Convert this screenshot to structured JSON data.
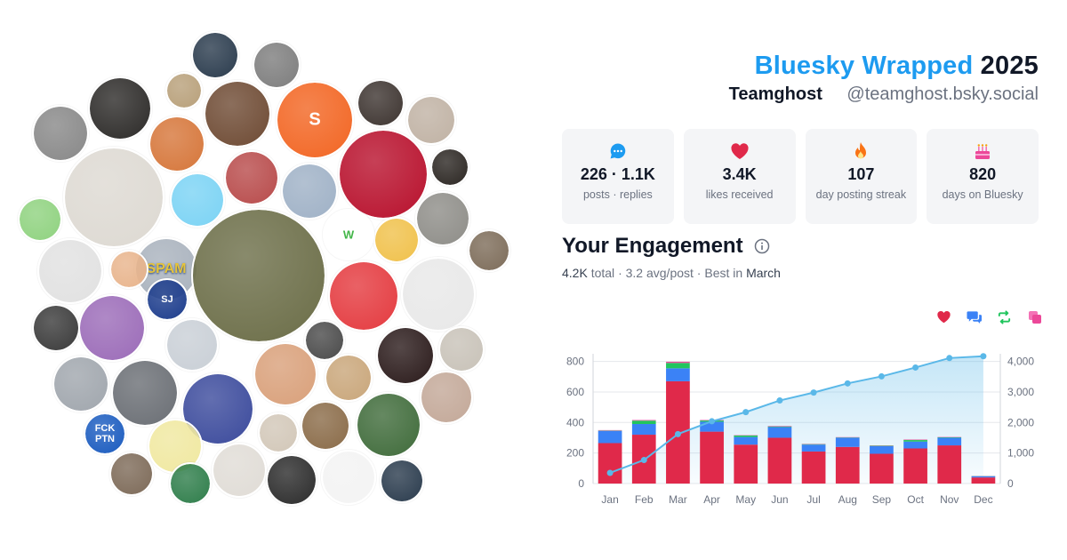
{
  "header": {
    "brand": "Bluesky Wrapped",
    "year": "2025",
    "display_name": "Teamghost",
    "handle": "@teamghost.bsky.social"
  },
  "colors": {
    "brand_blue": "#1d9bf0",
    "likes_red": "#e0294a",
    "replies_blue": "#3b82f6",
    "reposts_green": "#22c55e",
    "quotes_pink": "#ec4899",
    "cumulative_line": "#5ab8e8"
  },
  "avatars": {
    "items": [
      {
        "label": "",
        "color": "#2a3b4d",
        "icon": "person-photo"
      },
      {
        "label": "",
        "color": "#7d7d7d",
        "icon": "person-photo"
      },
      {
        "label": "",
        "color": "#b8a07a",
        "icon": "cat-photo"
      },
      {
        "label": "",
        "color": "#6e4a33",
        "icon": "person-photo"
      },
      {
        "label": "S",
        "color": "#f26522",
        "icon": "substack-logo"
      },
      {
        "label": "",
        "color": "#3d3430",
        "icon": "person-photo"
      },
      {
        "label": "",
        "color": "#c0b2a4",
        "icon": "person-photo"
      },
      {
        "label": "",
        "color": "#2c2a28",
        "icon": "person-photo"
      },
      {
        "label": "",
        "color": "#888888",
        "icon": "person-photo"
      },
      {
        "label": "",
        "color": "#d6763a",
        "icon": "android-logo"
      },
      {
        "label": "",
        "color": "#ddd9d2",
        "icon": "photo"
      },
      {
        "label": "",
        "color": "#7bd3f4",
        "icon": "cartoon-face"
      },
      {
        "label": "",
        "color": "#b84b4b",
        "icon": "person-photo"
      },
      {
        "label": "",
        "color": "#9fb1c6",
        "icon": "person-photo"
      },
      {
        "label": "",
        "color": "#b8102c",
        "icon": "emblem"
      },
      {
        "label": "",
        "color": "#2b2622",
        "icon": "mask"
      },
      {
        "label": "",
        "color": "#8e8d88",
        "icon": "photo"
      },
      {
        "label": "SPAM",
        "color": "#a9b2bd",
        "icon": "spam-can"
      },
      {
        "label": "",
        "color": "#6b6d47",
        "icon": "photo"
      },
      {
        "label": "",
        "color": "#e43a3f",
        "icon": "plush-toys"
      },
      {
        "label": "",
        "color": "#e8e8e8",
        "icon": "building"
      },
      {
        "label": "",
        "color": "#f0c14b",
        "icon": "badge"
      },
      {
        "label": "W",
        "color": "#ffffff",
        "icon": "monitor-logo"
      },
      {
        "label": "",
        "color": "#7d6c59",
        "icon": "person-photo"
      },
      {
        "label": "",
        "color": "#8fd27f",
        "icon": "frog"
      },
      {
        "label": "",
        "color": "#e1e1e1",
        "icon": "bear"
      },
      {
        "label": "",
        "color": "#e8b48c",
        "icon": "emoji-face"
      },
      {
        "label": "SJ",
        "color": "#1c3c8c",
        "icon": "logo"
      },
      {
        "label": "",
        "color": "#3a3a3a",
        "icon": "person-photo"
      },
      {
        "label": "",
        "color": "#9b6bb8",
        "icon": "cartoon"
      },
      {
        "label": "",
        "color": "#c9cfd6",
        "icon": "person-photo"
      },
      {
        "label": "",
        "color": "#4a4a4a",
        "icon": "cartoon-mole"
      },
      {
        "label": "",
        "color": "#2a1a1a",
        "icon": "artwork"
      },
      {
        "label": "",
        "color": "#c8c2b8",
        "icon": "person-photo"
      },
      {
        "label": "",
        "color": "#a0a6ad",
        "icon": "person-photo"
      },
      {
        "label": "",
        "color": "#6a6e74",
        "icon": "person-photo"
      },
      {
        "label": "",
        "color": "#3b4a9c",
        "icon": "chocolate"
      },
      {
        "label": "",
        "color": "#d9a07a",
        "icon": "bird"
      },
      {
        "label": "",
        "color": "#c9a67a",
        "icon": "person-photo"
      },
      {
        "label": "",
        "color": "#c3a898",
        "icon": "person-photo"
      },
      {
        "label": "",
        "color": "#d2c7b8",
        "icon": "person-photo"
      },
      {
        "label": "FCK PTN",
        "color": "#1a5bbf",
        "icon": "flag"
      },
      {
        "label": "",
        "color": "#f0e8a0",
        "icon": "duck"
      },
      {
        "label": "",
        "color": "#8a6b48",
        "icon": "person-photo"
      },
      {
        "label": "",
        "color": "#3f6b3a",
        "icon": "game-art"
      },
      {
        "label": "",
        "color": "#7d6a58",
        "icon": "person-photo"
      },
      {
        "label": "",
        "color": "#2e7d4a",
        "icon": "person-photo"
      },
      {
        "label": "",
        "color": "#e0dcd6",
        "icon": "photo"
      },
      {
        "label": "",
        "color": "#2b2b2b",
        "icon": "pixel-art"
      },
      {
        "label": "",
        "color": "#f3f3f3",
        "icon": "animal-sketch"
      }
    ]
  },
  "stats": [
    {
      "icon": "chat-bubble-icon",
      "value": "226 · 1.1K",
      "label": "posts · replies"
    },
    {
      "icon": "heart-icon",
      "value": "3.4K",
      "label": "likes received"
    },
    {
      "icon": "flame-icon",
      "value": "107",
      "label": "day posting streak"
    },
    {
      "icon": "cake-icon",
      "value": "820",
      "label": "days on Bluesky"
    }
  ],
  "engagement": {
    "title": "Your Engagement",
    "total": "4.2K",
    "total_word": "total",
    "avg": "3.2 avg/post",
    "best_prefix": "Best in",
    "best_month": "March",
    "separator": "·",
    "legend_icons": [
      "heart-icon",
      "reply-icon",
      "repost-icon",
      "quote-icon"
    ]
  },
  "chart_data": {
    "type": "bar",
    "stacked": true,
    "categories": [
      "Jan",
      "Feb",
      "Mar",
      "Apr",
      "May",
      "Jun",
      "Jul",
      "Aug",
      "Sep",
      "Oct",
      "Nov",
      "Dec"
    ],
    "series": [
      {
        "values": [
          265,
          320,
          670,
          340,
          255,
          300,
          210,
          240,
          195,
          230,
          250,
          40
        ]
      },
      {
        "values": [
          80,
          70,
          85,
          65,
          50,
          70,
          45,
          60,
          50,
          45,
          50,
          8
        ]
      },
      {
        "values": [
          2,
          22,
          35,
          8,
          10,
          4,
          3,
          2,
          3,
          10,
          3,
          1
        ]
      },
      {
        "values": [
          3,
          4,
          8,
          3,
          2,
          3,
          2,
          2,
          2,
          3,
          2,
          1
        ]
      }
    ],
    "cumulative_line": [
      350,
      770,
      1620,
      2040,
      2340,
      2720,
      2980,
      3280,
      3510,
      3800,
      4110,
      4170
    ],
    "y_left": {
      "ticks": [
        0,
        200,
        400,
        600,
        800
      ],
      "tick_labels": [
        "0",
        "200",
        "400",
        "600",
        "800"
      ],
      "range": [
        0,
        850
      ]
    },
    "y_right": {
      "ticks": [
        0,
        1000,
        2000,
        3000,
        4000
      ],
      "tick_labels": [
        "0",
        "1,000",
        "2,000",
        "3,000",
        "4,000"
      ],
      "range": [
        0,
        4250
      ]
    },
    "grid": true,
    "legend": "top-right"
  }
}
